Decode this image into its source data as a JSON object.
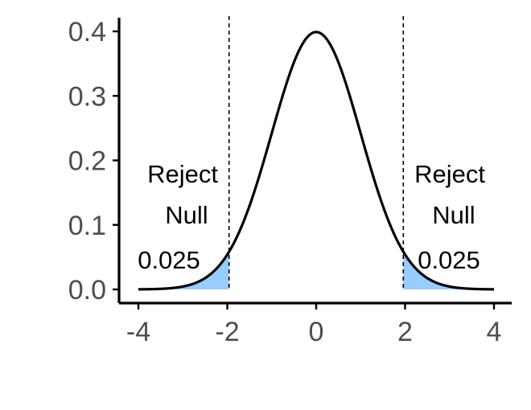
{
  "chart_data": {
    "type": "area",
    "distribution": "standard normal density",
    "xlim": [
      -4,
      4
    ],
    "ylim": [
      0,
      0.4
    ],
    "x_ticks": [
      "-4",
      "-2",
      "0",
      "2",
      "4"
    ],
    "y_ticks": [
      "0.0",
      "0.1",
      "0.2",
      "0.3",
      "0.4"
    ],
    "critical_values": [
      -1.96,
      1.96
    ],
    "shaded_regions": [
      {
        "from": -4,
        "to": -1.96,
        "area_label": "0.025"
      },
      {
        "from": 1.96,
        "to": 4,
        "area_label": "0.025"
      }
    ],
    "annotations": {
      "left": {
        "line1": "Reject",
        "line2": "Null",
        "value": "0.025"
      },
      "right": {
        "line1": "Reject",
        "line2": "Null",
        "value": "0.025"
      }
    },
    "xlabel": "",
    "ylabel": "",
    "grid": false,
    "colors": {
      "curve": "#000000",
      "shade": "#99ccff",
      "axis": "#000000",
      "tick_text": "#4d4d4d"
    }
  }
}
